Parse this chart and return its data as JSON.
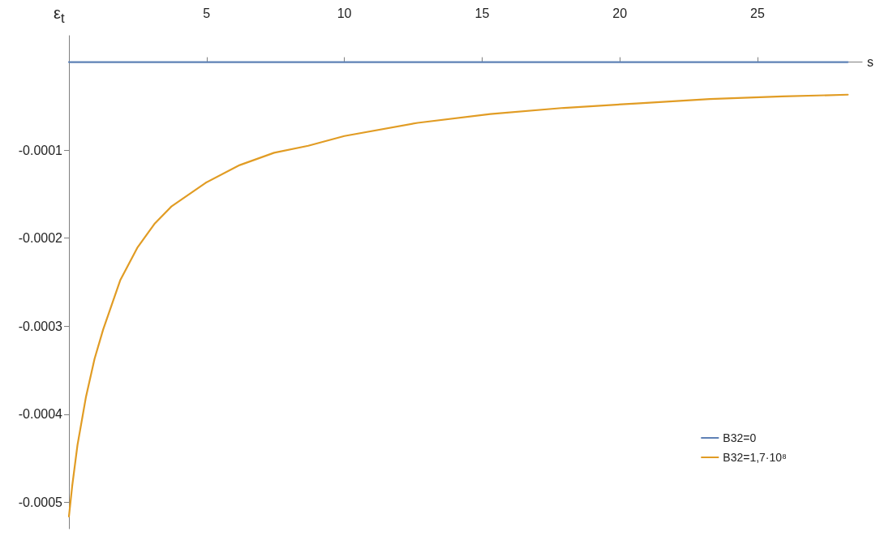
{
  "chart_data": {
    "type": "line",
    "xlabel": "s",
    "ylabel": "ε$_{t}$",
    "xlim": [
      0,
      28.8
    ],
    "ylim": [
      -0.00053,
      3e-05
    ],
    "xticks": [
      5,
      10,
      15,
      20,
      25
    ],
    "yticks": [
      -0.0001,
      -0.0002,
      -0.0003,
      -0.0004,
      -0.0005
    ],
    "grid": false,
    "legend": "bottom right",
    "marker": "none",
    "series": [
      {
        "name": "B32=0",
        "color": "#5e81b5",
        "x": [
          0,
          28.28
        ],
        "values": [
          0,
          0
        ]
      },
      {
        "name": "B32=1,7·10⁸",
        "color": "#e19c24",
        "x": [
          0,
          0.12,
          0.31,
          0.62,
          0.93,
          1.24,
          1.86,
          2.48,
          3.1,
          3.72,
          4.97,
          6.2,
          7.45,
          8.69,
          10.0,
          12.66,
          15.3,
          17.97,
          20.6,
          23.27,
          25.9,
          28.28
        ],
        "values": [
          -0.000516,
          -0.000481,
          -0.000435,
          -0.00038,
          -0.000337,
          -0.000304,
          -0.000248,
          -0.000211,
          -0.000184,
          -0.000164,
          -0.000137,
          -0.000117,
          -0.000103,
          -9.5e-05,
          -8.4e-05,
          -6.9e-05,
          -5.9e-05,
          -5.2e-05,
          -4.7e-05,
          -4.2e-05,
          -3.9e-05,
          -3.7e-05
        ]
      }
    ]
  }
}
